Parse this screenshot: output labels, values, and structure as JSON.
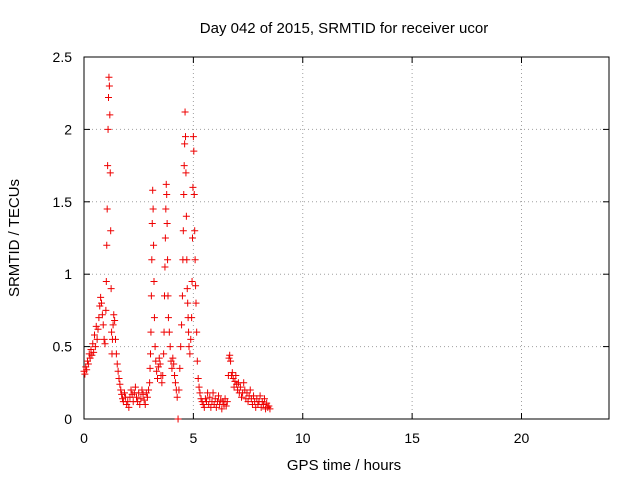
{
  "chart_data": {
    "type": "scatter",
    "title": "Day 042 of 2015, SRMTID for receiver ucor",
    "xlabel": "GPS time / hours",
    "ylabel": "SRMTID / TECUs",
    "xlim": [
      0,
      24
    ],
    "ylim": [
      0,
      2.5
    ],
    "xticks": [
      0,
      5,
      10,
      15,
      20
    ],
    "xtick_labels": [
      "0",
      "5",
      "10",
      "15",
      "20"
    ],
    "yticks": [
      0,
      0.5,
      1,
      1.5,
      2,
      2.5
    ],
    "ytick_labels": [
      "0",
      "0.5",
      "1",
      "1.5",
      "2",
      "2.5"
    ],
    "grid": true,
    "marker": "+",
    "series": [
      {
        "name": "SRMTID",
        "color": "#ee0000",
        "points": [
          [
            0.0,
            0.33
          ],
          [
            0.04,
            0.31
          ],
          [
            0.08,
            0.36
          ],
          [
            0.12,
            0.34
          ],
          [
            0.16,
            0.4
          ],
          [
            0.2,
            0.38
          ],
          [
            0.24,
            0.45
          ],
          [
            0.28,
            0.42
          ],
          [
            0.32,
            0.48
          ],
          [
            0.36,
            0.44
          ],
          [
            0.4,
            0.52
          ],
          [
            0.44,
            0.46
          ],
          [
            0.48,
            0.58
          ],
          [
            0.52,
            0.5
          ],
          [
            0.56,
            0.64
          ],
          [
            0.6,
            0.55
          ],
          [
            0.64,
            0.62
          ],
          [
            0.68,
            0.7
          ],
          [
            0.72,
            0.78
          ],
          [
            0.76,
            0.84
          ],
          [
            0.8,
            0.8
          ],
          [
            0.84,
            0.72
          ],
          [
            0.88,
            0.65
          ],
          [
            0.92,
            0.55
          ],
          [
            0.96,
            0.52
          ],
          [
            1.0,
            0.75
          ],
          [
            1.02,
            0.95
          ],
          [
            1.04,
            1.2
          ],
          [
            1.06,
            1.45
          ],
          [
            1.08,
            1.75
          ],
          [
            1.1,
            2.0
          ],
          [
            1.12,
            2.22
          ],
          [
            1.14,
            2.36
          ],
          [
            1.16,
            2.3
          ],
          [
            1.18,
            2.1
          ],
          [
            1.2,
            1.7
          ],
          [
            1.22,
            1.3
          ],
          [
            1.24,
            0.9
          ],
          [
            1.26,
            0.6
          ],
          [
            1.28,
            0.45
          ],
          [
            1.3,
            0.55
          ],
          [
            1.33,
            0.65
          ],
          [
            1.36,
            0.72
          ],
          [
            1.4,
            0.68
          ],
          [
            1.44,
            0.55
          ],
          [
            1.48,
            0.45
          ],
          [
            1.52,
            0.38
          ],
          [
            1.56,
            0.33
          ],
          [
            1.6,
            0.28
          ],
          [
            1.64,
            0.24
          ],
          [
            1.68,
            0.2
          ],
          [
            1.72,
            0.17
          ],
          [
            1.76,
            0.14
          ],
          [
            1.8,
            0.12
          ],
          [
            1.85,
            0.18
          ],
          [
            1.9,
            0.15
          ],
          [
            1.95,
            0.1
          ],
          [
            2.0,
            0.12
          ],
          [
            2.05,
            0.08
          ],
          [
            2.1,
            0.15
          ],
          [
            2.15,
            0.2
          ],
          [
            2.2,
            0.17
          ],
          [
            2.25,
            0.12
          ],
          [
            2.3,
            0.18
          ],
          [
            2.35,
            0.22
          ],
          [
            2.4,
            0.15
          ],
          [
            2.45,
            0.12
          ],
          [
            2.5,
            0.18
          ],
          [
            2.55,
            0.1
          ],
          [
            2.6,
            0.14
          ],
          [
            2.65,
            0.2
          ],
          [
            2.7,
            0.17
          ],
          [
            2.75,
            0.13
          ],
          [
            2.8,
            0.1
          ],
          [
            2.85,
            0.18
          ],
          [
            2.9,
            0.15
          ],
          [
            2.95,
            0.2
          ],
          [
            3.0,
            0.25
          ],
          [
            3.02,
            0.35
          ],
          [
            3.04,
            0.45
          ],
          [
            3.06,
            0.6
          ],
          [
            3.08,
            0.85
          ],
          [
            3.1,
            1.1
          ],
          [
            3.12,
            1.35
          ],
          [
            3.14,
            1.58
          ],
          [
            3.16,
            1.45
          ],
          [
            3.18,
            1.2
          ],
          [
            3.2,
            0.95
          ],
          [
            3.22,
            0.7
          ],
          [
            3.25,
            0.5
          ],
          [
            3.28,
            0.4
          ],
          [
            3.32,
            0.33
          ],
          [
            3.36,
            0.28
          ],
          [
            3.4,
            0.36
          ],
          [
            3.44,
            0.42
          ],
          [
            3.48,
            0.38
          ],
          [
            3.52,
            0.3
          ],
          [
            3.56,
            0.25
          ],
          [
            3.6,
            0.3
          ],
          [
            3.64,
            0.45
          ],
          [
            3.66,
            0.6
          ],
          [
            3.68,
            0.85
          ],
          [
            3.7,
            1.05
          ],
          [
            3.72,
            1.25
          ],
          [
            3.74,
            1.45
          ],
          [
            3.76,
            1.62
          ],
          [
            3.78,
            1.55
          ],
          [
            3.8,
            1.35
          ],
          [
            3.82,
            1.1
          ],
          [
            3.84,
            0.85
          ],
          [
            3.86,
            0.7
          ],
          [
            3.9,
            0.6
          ],
          [
            3.94,
            0.5
          ],
          [
            3.98,
            0.4
          ],
          [
            4.02,
            0.35
          ],
          [
            4.06,
            0.42
          ],
          [
            4.1,
            0.38
          ],
          [
            4.14,
            0.3
          ],
          [
            4.18,
            0.25
          ],
          [
            4.22,
            0.2
          ],
          [
            4.26,
            0.15
          ],
          [
            4.3,
            0.0
          ],
          [
            4.34,
            0.2
          ],
          [
            4.38,
            0.35
          ],
          [
            4.42,
            0.5
          ],
          [
            4.46,
            0.65
          ],
          [
            4.5,
            0.85
          ],
          [
            4.52,
            1.1
          ],
          [
            4.54,
            1.3
          ],
          [
            4.56,
            1.55
          ],
          [
            4.58,
            1.75
          ],
          [
            4.6,
            1.9
          ],
          [
            4.62,
            2.12
          ],
          [
            4.64,
            1.95
          ],
          [
            4.66,
            1.7
          ],
          [
            4.68,
            1.4
          ],
          [
            4.7,
            1.1
          ],
          [
            4.72,
            0.9
          ],
          [
            4.74,
            0.8
          ],
          [
            4.76,
            0.7
          ],
          [
            4.78,
            0.6
          ],
          [
            4.8,
            0.5
          ],
          [
            4.84,
            0.45
          ],
          [
            4.88,
            0.55
          ],
          [
            4.92,
            0.7
          ],
          [
            4.94,
            0.95
          ],
          [
            4.96,
            1.25
          ],
          [
            4.98,
            1.6
          ],
          [
            5.0,
            1.95
          ],
          [
            5.02,
            1.85
          ],
          [
            5.04,
            1.55
          ],
          [
            5.06,
            1.3
          ],
          [
            5.08,
            1.1
          ],
          [
            5.1,
            0.92
          ],
          [
            5.12,
            0.8
          ],
          [
            5.15,
            0.6
          ],
          [
            5.18,
            0.4
          ],
          [
            5.22,
            0.28
          ],
          [
            5.26,
            0.22
          ],
          [
            5.3,
            0.18
          ],
          [
            5.35,
            0.14
          ],
          [
            5.4,
            0.12
          ],
          [
            5.45,
            0.1
          ],
          [
            5.5,
            0.08
          ],
          [
            5.55,
            0.14
          ],
          [
            5.6,
            0.12
          ],
          [
            5.65,
            0.18
          ],
          [
            5.7,
            0.1
          ],
          [
            5.75,
            0.15
          ],
          [
            5.8,
            0.08
          ],
          [
            5.85,
            0.12
          ],
          [
            5.9,
            0.18
          ],
          [
            5.95,
            0.1
          ],
          [
            6.0,
            0.14
          ],
          [
            6.05,
            0.08
          ],
          [
            6.1,
            0.12
          ],
          [
            6.15,
            0.16
          ],
          [
            6.2,
            0.1
          ],
          [
            6.25,
            0.13
          ],
          [
            6.3,
            0.07
          ],
          [
            6.35,
            0.12
          ],
          [
            6.4,
            0.1
          ],
          [
            6.45,
            0.14
          ],
          [
            6.5,
            0.09
          ],
          [
            6.55,
            0.12
          ],
          [
            6.6,
            0.3
          ],
          [
            6.63,
            0.42
          ],
          [
            6.66,
            0.44
          ],
          [
            6.7,
            0.4
          ],
          [
            6.74,
            0.3
          ],
          [
            6.78,
            0.32
          ],
          [
            6.82,
            0.28
          ],
          [
            6.86,
            0.22
          ],
          [
            6.9,
            0.26
          ],
          [
            6.94,
            0.3
          ],
          [
            6.98,
            0.24
          ],
          [
            7.02,
            0.2
          ],
          [
            7.06,
            0.25
          ],
          [
            7.1,
            0.18
          ],
          [
            7.15,
            0.22
          ],
          [
            7.2,
            0.15
          ],
          [
            7.25,
            0.18
          ],
          [
            7.3,
            0.25
          ],
          [
            7.35,
            0.2
          ],
          [
            7.4,
            0.14
          ],
          [
            7.45,
            0.18
          ],
          [
            7.5,
            0.12
          ],
          [
            7.55,
            0.16
          ],
          [
            7.6,
            0.2
          ],
          [
            7.65,
            0.14
          ],
          [
            7.7,
            0.1
          ],
          [
            7.75,
            0.16
          ],
          [
            7.8,
            0.12
          ],
          [
            7.85,
            0.08
          ],
          [
            7.9,
            0.14
          ],
          [
            7.95,
            0.1
          ],
          [
            8.0,
            0.12
          ],
          [
            8.05,
            0.16
          ],
          [
            8.1,
            0.08
          ],
          [
            8.15,
            0.12
          ],
          [
            8.2,
            0.1
          ],
          [
            8.25,
            0.14
          ],
          [
            8.3,
            0.07
          ],
          [
            8.35,
            0.11
          ],
          [
            8.4,
            0.08
          ],
          [
            8.45,
            0.09
          ],
          [
            8.5,
            0.07
          ]
        ]
      }
    ]
  }
}
